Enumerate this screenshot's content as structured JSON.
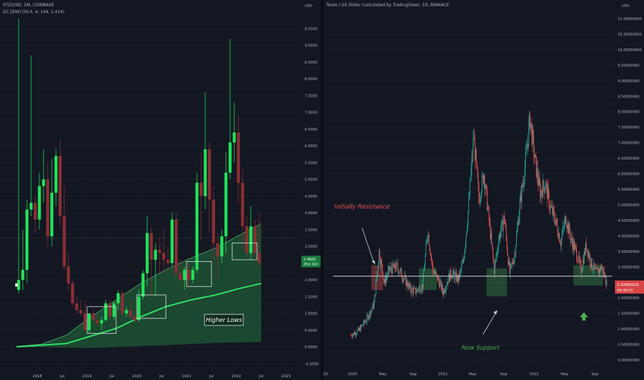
{
  "left": {
    "symbol_line": "XTZ/USD, 1M, COINBASE",
    "indicator_line": "GC [DW] (hlc3, 4, 144, 1.414)",
    "axis_unit": "USD",
    "price_tag": "2.4800",
    "countdown_tag": "25d 11h",
    "annotation": "Higher Lows",
    "colors": {
      "up": "#22e05a",
      "down": "#8a2e35",
      "band_fill": "#1f5a35",
      "curve": "#31e06a",
      "axis_text": "#b2b5be"
    }
  },
  "right": {
    "title_line": "Tezos / US Dollar (calculated by TradingView), 1D, BINANCE",
    "axis_unit": "USD",
    "price_tag": "2.47800029",
    "countdown_tag": "06:30:51",
    "annotation_resistance": "Initially Resistance",
    "annotation_support": "Now Support",
    "colors": {
      "up": "#26a69a",
      "down": "#ef5350",
      "resistance": "#ef5350",
      "support": "#4caf50",
      "line": "#d1d4dc"
    }
  },
  "chart_data": [
    {
      "type": "candlestick",
      "title": "XTZ/USD, 1M, COINBASE",
      "x_tick_labels": [
        "2018",
        "Jul",
        "2019",
        "Jul",
        "2020",
        "Jul",
        "2021",
        "Jul",
        "2022",
        "Jul",
        "2023"
      ],
      "y_tick_labels": [
        "9.5000",
        "9.0000",
        "8.5000",
        "8.0000",
        "7.5000",
        "7.0000",
        "6.5000",
        "6.0000",
        "5.5000",
        "5.0000",
        "4.5000",
        "4.0000",
        "3.5000",
        "3.0000",
        "2.5000",
        "2.0000",
        "1.5000",
        "1.0000",
        "0.5000",
        "0.0000",
        "-0.5000"
      ],
      "ylim": [
        -0.7,
        9.9
      ],
      "log_scale": false,
      "grid": true,
      "ohlc_monthly_from_2017_08": [
        [
          1.7,
          9.8,
          1.6,
          2.0
        ],
        [
          2.0,
          3.5,
          1.7,
          2.3
        ],
        [
          2.3,
          4.4,
          1.9,
          4.1
        ],
        [
          4.1,
          8.7,
          3.9,
          4.3
        ],
        [
          4.3,
          4.5,
          3.4,
          3.8
        ],
        [
          3.8,
          5.2,
          3.5,
          4.8
        ],
        [
          4.8,
          5.9,
          4.3,
          5.0
        ],
        [
          5.0,
          5.5,
          3.0,
          3.3
        ],
        [
          3.3,
          5.6,
          3.0,
          4.6
        ],
        [
          4.6,
          5.9,
          4.2,
          5.7
        ],
        [
          5.7,
          6.2,
          3.6,
          3.9
        ],
        [
          3.9,
          4.8,
          2.3,
          2.4
        ],
        [
          2.4,
          2.8,
          1.7,
          1.9
        ],
        [
          1.9,
          2.0,
          1.2,
          1.3
        ],
        [
          1.3,
          1.5,
          1.0,
          1.1
        ],
        [
          1.1,
          1.4,
          0.9,
          1.0
        ],
        [
          1.0,
          1.4,
          0.5,
          0.5
        ],
        [
          0.5,
          1.0,
          0.4,
          1.0
        ],
        [
          1.0,
          1.1,
          0.7,
          0.8
        ],
        [
          0.8,
          0.9,
          0.6,
          0.7
        ],
        [
          0.7,
          0.9,
          0.5,
          0.8
        ],
        [
          0.8,
          1.4,
          0.75,
          1.3
        ],
        [
          1.3,
          1.4,
          0.85,
          0.9
        ],
        [
          0.9,
          1.35,
          0.8,
          1.3
        ],
        [
          1.3,
          1.7,
          1.1,
          1.6
        ],
        [
          1.6,
          1.7,
          0.9,
          1.0
        ],
        [
          1.0,
          1.2,
          0.9,
          1.1
        ],
        [
          1.1,
          1.4,
          0.8,
          0.9
        ],
        [
          0.9,
          1.0,
          0.7,
          0.8
        ],
        [
          0.8,
          1.7,
          0.75,
          1.5
        ],
        [
          1.5,
          2.3,
          1.4,
          2.2
        ],
        [
          2.2,
          3.9,
          1.8,
          3.4
        ],
        [
          3.4,
          3.6,
          1.5,
          2.6
        ],
        [
          2.6,
          3.1,
          1.5,
          2.9
        ],
        [
          2.9,
          3.3,
          2.2,
          2.8
        ],
        [
          2.8,
          3.5,
          2.2,
          2.6
        ],
        [
          2.6,
          3.0,
          2.2,
          2.5
        ],
        [
          2.5,
          4.0,
          2.4,
          3.8
        ],
        [
          3.8,
          4.0,
          2.1,
          2.2
        ],
        [
          2.2,
          2.6,
          1.9,
          2.0
        ],
        [
          2.0,
          2.4,
          1.7,
          2.3
        ],
        [
          2.3,
          2.5,
          1.8,
          2.0
        ],
        [
          2.0,
          2.4,
          1.9,
          2.3
        ],
        [
          2.3,
          5.2,
          2.2,
          4.9
        ],
        [
          4.9,
          5.8,
          3.2,
          4.5
        ],
        [
          4.5,
          7.6,
          4.1,
          5.9
        ],
        [
          5.9,
          6.1,
          3.4,
          4.4
        ],
        [
          4.4,
          4.8,
          2.6,
          3.1
        ],
        [
          3.1,
          3.4,
          2.0,
          2.7
        ],
        [
          2.7,
          3.5,
          2.5,
          3.3
        ],
        [
          3.3,
          5.8,
          2.8,
          5.2
        ],
        [
          5.2,
          9.2,
          5.0,
          6.1
        ],
        [
          6.1,
          7.3,
          5.5,
          6.4
        ],
        [
          6.4,
          6.9,
          4.3,
          4.9
        ],
        [
          4.9,
          5.3,
          2.9,
          3.6
        ],
        [
          3.6,
          3.9,
          2.7,
          2.8
        ],
        [
          2.8,
          4.2,
          2.6,
          3.6
        ],
        [
          3.6,
          3.8,
          2.7,
          2.8
        ],
        [
          2.8,
          4.0,
          2.4,
          2.5
        ]
      ],
      "lower_band_curve": [
        [
          0,
          0.0
        ],
        [
          12,
          0.1
        ],
        [
          24,
          0.55
        ],
        [
          30,
          0.9
        ],
        [
          36,
          1.2
        ],
        [
          42,
          1.4
        ],
        [
          48,
          1.55
        ],
        [
          54,
          1.75
        ],
        [
          60,
          1.92
        ]
      ],
      "upper_band_curve": [
        [
          0,
          0.02
        ],
        [
          6,
          0.08
        ],
        [
          12,
          0.35
        ],
        [
          18,
          0.9
        ],
        [
          24,
          1.4
        ],
        [
          30,
          1.9
        ],
        [
          36,
          2.3
        ],
        [
          42,
          2.65
        ],
        [
          48,
          2.95
        ],
        [
          54,
          3.35
        ],
        [
          60,
          3.75
        ]
      ],
      "bottom_band_curve": [
        [
          0,
          0.0
        ],
        [
          18,
          -0.03
        ],
        [
          36,
          0.05
        ],
        [
          48,
          0.12
        ],
        [
          60,
          0.15
        ]
      ],
      "highlight_boxes": [
        [
          17,
          24,
          0.4,
          1.2
        ],
        [
          29,
          36,
          0.85,
          1.55
        ],
        [
          41,
          47,
          1.8,
          2.55
        ],
        [
          52,
          58,
          2.6,
          3.1
        ]
      ],
      "current_price": 2.48
    },
    {
      "type": "candlestick",
      "title": "Tezos / US Dollar (calculated by TradingView), 1D, BINANCE",
      "x_tick_labels": [
        "25",
        "2020",
        "May",
        "Sep",
        "2021",
        "May",
        "Sep",
        "2022",
        "May",
        "Sep"
      ],
      "y_tick_labels": [
        "11.00000000",
        "10.50000000",
        "10.00000000",
        "9.50000000",
        "9.00000000",
        "8.50000000",
        "8.00000000",
        "7.50000000",
        "7.00000000",
        "6.50000000",
        "6.00000000",
        "5.50000000",
        "5.00000000",
        "4.50000000",
        "4.00000000",
        "3.50000000",
        "3.00000000",
        "2.50000000",
        "2.00000000",
        "1.50000000",
        "1.00000000",
        "0.50000000",
        "0.00000000"
      ],
      "ylim": [
        -0.2,
        11.2
      ],
      "log_scale": false,
      "grid": true,
      "close_path": [
        [
          0,
          0.8
        ],
        [
          6,
          0.95
        ],
        [
          12,
          1.3
        ],
        [
          18,
          1.8
        ],
        [
          22,
          3.5
        ],
        [
          26,
          2.5
        ],
        [
          30,
          2.9
        ],
        [
          36,
          3.0
        ],
        [
          42,
          2.6
        ],
        [
          46,
          2.3
        ],
        [
          50,
          2.2
        ],
        [
          56,
          2.4
        ],
        [
          60,
          4.2
        ],
        [
          64,
          2.9
        ],
        [
          68,
          2.6
        ],
        [
          72,
          2.2
        ],
        [
          78,
          2.8
        ],
        [
          84,
          2.6
        ],
        [
          88,
          3.2
        ],
        [
          92,
          5.0
        ],
        [
          96,
          7.2
        ],
        [
          100,
          5.2
        ],
        [
          104,
          6.0
        ],
        [
          108,
          4.5
        ],
        [
          112,
          2.9
        ],
        [
          116,
          4.0
        ],
        [
          120,
          4.6
        ],
        [
          124,
          2.8
        ],
        [
          128,
          3.4
        ],
        [
          132,
          5.0
        ],
        [
          136,
          6.2
        ],
        [
          140,
          7.8
        ],
        [
          144,
          6.4
        ],
        [
          148,
          5.4
        ],
        [
          152,
          5.7
        ],
        [
          156,
          4.9
        ],
        [
          160,
          4.5
        ],
        [
          164,
          3.8
        ],
        [
          168,
          4.6
        ],
        [
          172,
          3.9
        ],
        [
          176,
          3.5
        ],
        [
          180,
          2.9
        ],
        [
          184,
          3.7
        ],
        [
          188,
          3.1
        ],
        [
          192,
          2.8
        ],
        [
          196,
          3.0
        ],
        [
          200,
          2.48
        ]
      ],
      "resistance_support_level": 2.7,
      "resistance_box": [
        16,
        25,
        2.25,
        3.05
      ],
      "support_boxes": [
        [
          53,
          67,
          2.25,
          2.95
        ],
        [
          106,
          122,
          2.05,
          2.95
        ],
        [
          174,
          197,
          2.4,
          3.05
        ]
      ],
      "current_price": 2.47800029
    }
  ]
}
